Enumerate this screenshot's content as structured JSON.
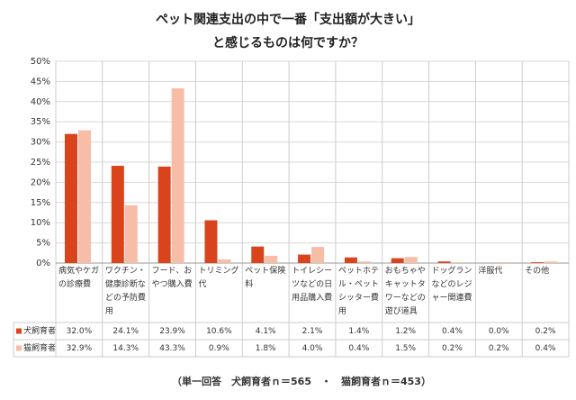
{
  "chart_data": {
    "type": "bar",
    "title": [
      "ペット関連支出の中で一番「支出額が大きい」",
      "と感じるものは何ですか？"
    ],
    "categories": [
      "病気やケガの診療費",
      "ワクチン・健康診断などの予防費用",
      "フード、おやつ購入費",
      "トリミング代",
      "ペット保険料",
      "トイレシーツなどの日用品購入費",
      "ペットホテル・ペットシッター費用",
      "おもちゃやキャットタワーなどの遊び道具",
      "ドッグランなどのレジャー関連費",
      "洋服代",
      "その他"
    ],
    "series": [
      {
        "name": "犬飼育者",
        "color": "#d9441c",
        "values": [
          32.0,
          24.1,
          23.9,
          10.6,
          4.1,
          2.1,
          1.4,
          1.2,
          0.4,
          0.0,
          0.2
        ],
        "value_labels": [
          "32.0%",
          "24.1%",
          "23.9%",
          "10.6%",
          "4.1%",
          "2.1%",
          "1.4%",
          "1.2%",
          "0.4%",
          "0.0%",
          "0.2%"
        ]
      },
      {
        "name": "猫飼育者",
        "color": "#f8bda6",
        "values": [
          32.9,
          14.3,
          43.3,
          0.9,
          1.8,
          4.0,
          0.4,
          1.5,
          0.2,
          0.2,
          0.4
        ],
        "value_labels": [
          "32.9%",
          "14.3%",
          "43.3%",
          "0.9%",
          "1.8%",
          "4.0%",
          "0.4%",
          "1.5%",
          "0.2%",
          "0.2%",
          "0.4%"
        ]
      }
    ],
    "ylim": [
      0,
      50
    ],
    "yticks": [
      {
        "value": 0,
        "label": "0%"
      },
      {
        "value": 5,
        "label": "5%"
      },
      {
        "value": 10,
        "label": "10%"
      },
      {
        "value": 15,
        "label": "15%"
      },
      {
        "value": 20,
        "label": "20%"
      },
      {
        "value": 25,
        "label": "25%"
      },
      {
        "value": 30,
        "label": "30%"
      },
      {
        "value": 35,
        "label": "35%"
      },
      {
        "value": 40,
        "label": "40%"
      },
      {
        "value": 45,
        "label": "45%"
      },
      {
        "value": 50,
        "label": "50%"
      }
    ],
    "grid": true,
    "footnote": "（単一回答　犬飼育者ｎ＝565　・　猫飼育者ｎ＝453）"
  }
}
